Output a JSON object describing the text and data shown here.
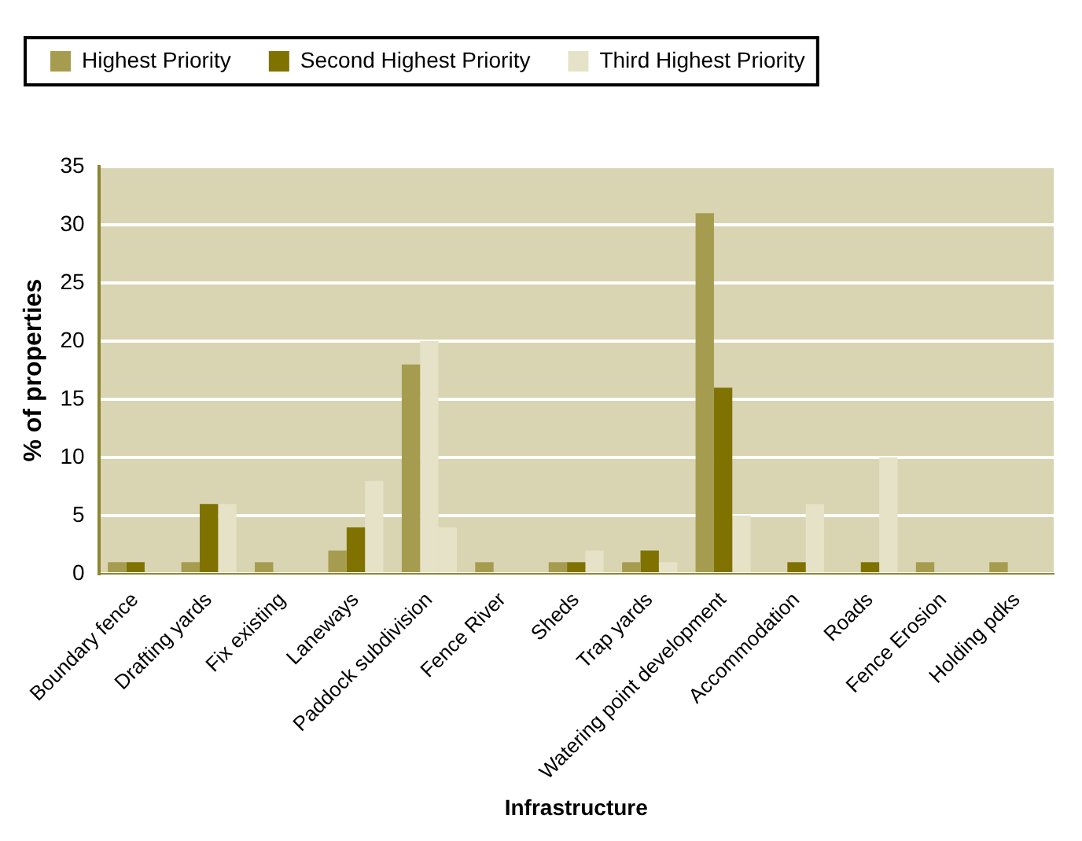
{
  "chart_data": {
    "type": "bar",
    "xlabel": "Infrastructure",
    "ylabel": "% of properties",
    "categories": [
      "Boundary fence",
      "Drafting yards",
      "Fix existing",
      "Laneways",
      "Paddock subdivision",
      "Fence River",
      "Sheds",
      "Trap yards",
      "Watering point development",
      "Accommodation",
      "Roads",
      "Fence Erosion",
      "Holding pdks"
    ],
    "series": [
      {
        "name": "Highest Priority",
        "color": "#a59c4f",
        "values": [
          1,
          1,
          1,
          2,
          18,
          1,
          1,
          1,
          31,
          null,
          null,
          1,
          1
        ]
      },
      {
        "name": "Second Highest Priority",
        "color": "#7f7200",
        "colors": [
          "#7f7200",
          "#7f7200",
          "#7f7200",
          "#7f7200",
          "#e5e2c8",
          "#7f7200",
          "#7f7200",
          "#7f7200",
          "#7f7200",
          "#7f7200",
          "#7f7200",
          "#7f7200",
          "#7f7200"
        ],
        "values": [
          1,
          6,
          null,
          4,
          20,
          null,
          1,
          2,
          16,
          1,
          1,
          null,
          null
        ]
      },
      {
        "name": "Third Highest Priority",
        "color": "#e5e2c8",
        "values": [
          null,
          6,
          null,
          8,
          4,
          null,
          2,
          1,
          5,
          6,
          10,
          null,
          null
        ]
      }
    ],
    "ylim": [
      0,
      35
    ],
    "yticks": [
      0,
      5,
      10,
      15,
      20,
      25,
      30,
      35
    ],
    "grid": "y",
    "legend": "top"
  }
}
